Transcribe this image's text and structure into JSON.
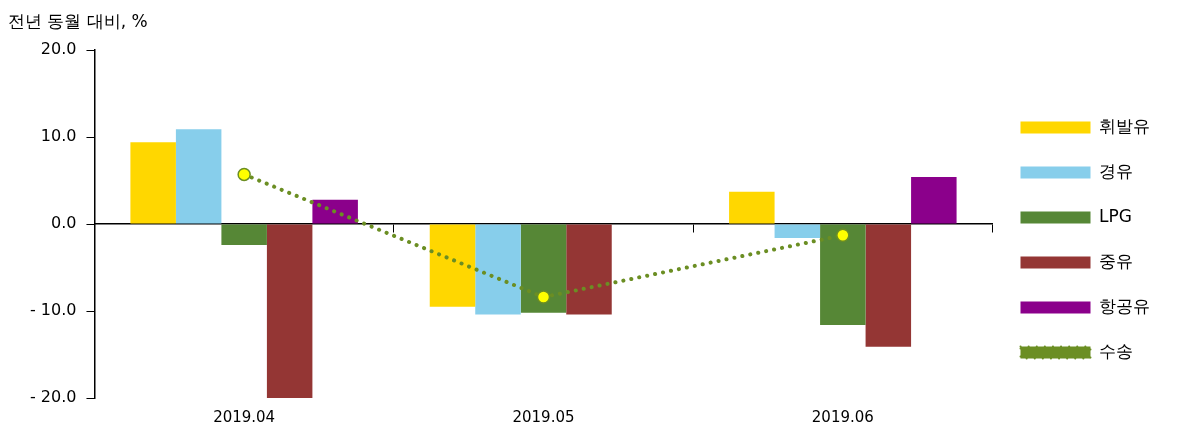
{
  "chart_data": {
    "type": "bar",
    "ylabel": "전년 동월 대비, %",
    "categories": [
      "2019.04",
      "2019.05",
      "2019.06"
    ],
    "ylim": [
      -20,
      20
    ],
    "yticks": [
      {
        "value": -20,
        "label": "- 20.0"
      },
      {
        "value": -10,
        "label": "- 10.0"
      },
      {
        "value": 0,
        "label": "0.0"
      },
      {
        "value": 10,
        "label": "10.0"
      },
      {
        "value": 20,
        "label": "20.0"
      }
    ],
    "legend": "right",
    "series": [
      {
        "name": "휘발유",
        "color": "#ffd700",
        "values": [
          9.4,
          -9.5,
          3.7
        ]
      },
      {
        "name": "경유",
        "color": "#87ceeb",
        "values": [
          10.9,
          -10.4,
          -1.6
        ]
      },
      {
        "name": "LPG",
        "color": "#568736",
        "values": [
          -2.4,
          -10.2,
          -11.6
        ]
      },
      {
        "name": "중유",
        "color": "#943634",
        "values": [
          -20.0,
          -10.4,
          -14.1
        ]
      },
      {
        "name": "항공유",
        "color": "#8b008b",
        "values": [
          2.8,
          null,
          5.4
        ]
      },
      {
        "name": "수송",
        "type": "line",
        "color": "#6b8e23",
        "marker": "circle",
        "line_style": "dotted",
        "values": [
          5.7,
          -8.4,
          -1.3
        ]
      }
    ]
  }
}
